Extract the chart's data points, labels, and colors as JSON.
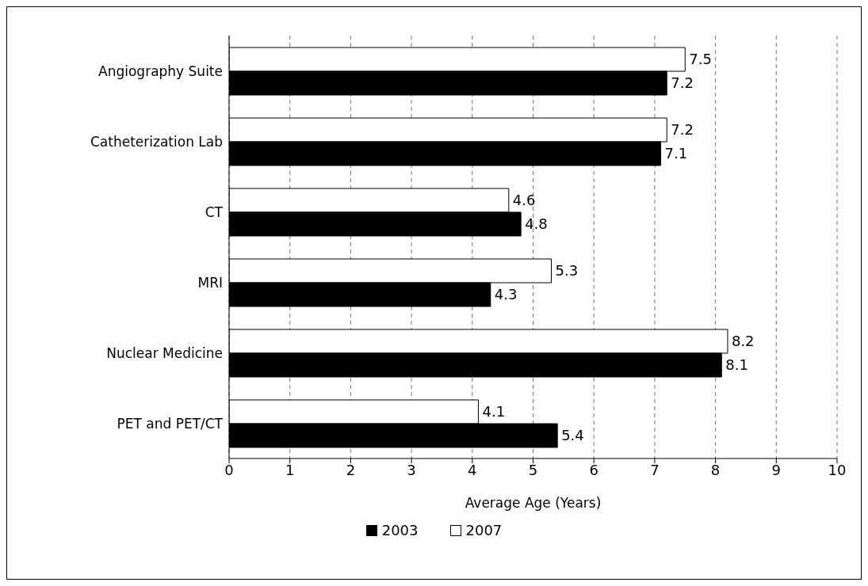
{
  "chart_data": {
    "type": "bar",
    "orientation": "horizontal",
    "xlabel": "Average Age (Years)",
    "categories": [
      "Angiography Suite",
      "Catheterization Lab",
      "CT",
      "MRI",
      "Nuclear Medicine",
      "PET and PET/CT"
    ],
    "series": [
      {
        "name": "2003",
        "color": "#000000",
        "values": [
          7.2,
          7.1,
          4.8,
          4.3,
          8.1,
          5.4
        ]
      },
      {
        "name": "2007",
        "color": "#ffffff",
        "values": [
          7.5,
          7.2,
          4.6,
          5.3,
          8.2,
          4.1
        ]
      }
    ],
    "xlim": [
      0,
      10
    ],
    "xticks": [
      0,
      1,
      2,
      3,
      4,
      5,
      6,
      7,
      8,
      9,
      10
    ],
    "grid": "x",
    "legend": "bottom",
    "data_labels": true
  }
}
